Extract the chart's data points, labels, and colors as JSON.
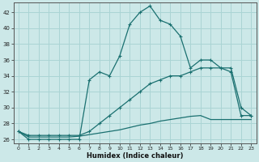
{
  "xlabel": "Humidex (Indice chaleur)",
  "background_color": "#cce8e8",
  "grid_color": "#aad4d4",
  "line_color": "#1a7070",
  "xlim": [
    -0.5,
    23.5
  ],
  "ylim": [
    25.5,
    43.2
  ],
  "xticks": [
    0,
    1,
    2,
    3,
    4,
    5,
    6,
    7,
    8,
    9,
    10,
    11,
    12,
    13,
    14,
    15,
    16,
    17,
    18,
    19,
    20,
    21,
    22,
    23
  ],
  "yticks": [
    26,
    28,
    30,
    32,
    34,
    36,
    38,
    40,
    42
  ],
  "line1_x": [
    0,
    1,
    2,
    3,
    4,
    5,
    6,
    7,
    8,
    9,
    10,
    11,
    12,
    13,
    14,
    15,
    16,
    17,
    18,
    19,
    20,
    21,
    22,
    23
  ],
  "line1_y": [
    27,
    26,
    26,
    26,
    26,
    26,
    26,
    33.5,
    34.5,
    34,
    36.5,
    40.5,
    42,
    42.8,
    41,
    40.5,
    39,
    35,
    36,
    36,
    35,
    34.5,
    29,
    29
  ],
  "line2_x": [
    0,
    1,
    2,
    3,
    4,
    5,
    6,
    7,
    8,
    9,
    10,
    11,
    12,
    13,
    14,
    15,
    16,
    17,
    18,
    19,
    20,
    21,
    22,
    23
  ],
  "line2_y": [
    27,
    26.5,
    26.5,
    26.5,
    26.5,
    26.5,
    26.5,
    27,
    28,
    29,
    30,
    31,
    32,
    33,
    33.5,
    34,
    34,
    34.5,
    35,
    35,
    35,
    35,
    30,
    29
  ],
  "line3_x": [
    0,
    1,
    2,
    3,
    4,
    5,
    6,
    7,
    8,
    9,
    10,
    11,
    12,
    13,
    14,
    15,
    16,
    17,
    18,
    19,
    20,
    21,
    22,
    23
  ],
  "line3_y": [
    27,
    26.3,
    26.3,
    26.3,
    26.3,
    26.3,
    26.4,
    26.6,
    26.8,
    27.0,
    27.2,
    27.5,
    27.8,
    28.0,
    28.3,
    28.5,
    28.7,
    28.9,
    29.0,
    28.5,
    28.5,
    28.5,
    28.5,
    28.5
  ]
}
